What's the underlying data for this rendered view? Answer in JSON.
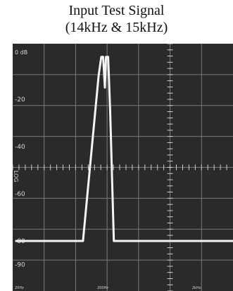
{
  "title_line1": "Input Test Signal",
  "title_line2": "(14kHz & 15kHz)",
  "colors": {
    "screen_bg": "#2a2a2a",
    "grid": "#7a7a7a",
    "trace": "#f4f4f4",
    "label": "#d8d8d8"
  },
  "chart_data": {
    "type": "line",
    "title": "Input Test Signal (14kHz & 15kHz)",
    "xlabel": "",
    "ylabel": "LOG",
    "y_scale_label": "LOG",
    "ylim": [
      -95,
      0
    ],
    "y_ticks": [
      {
        "label": "0 dB",
        "value": 0
      },
      {
        "label": "-20",
        "value": -20
      },
      {
        "label": "-40",
        "value": -40
      },
      {
        "label": "-60",
        "value": -60
      },
      {
        "label": "-80",
        "value": -80
      },
      {
        "label": "-90",
        "value": -90
      }
    ],
    "x_scale": "log",
    "xlim_hz": [
      20,
      40000
    ],
    "x_ticks": [
      {
        "label": "20Hz",
        "value": 20
      },
      {
        "label": "200Hz",
        "value": 200
      },
      {
        "label": "2kHz",
        "value": 2000
      }
    ],
    "grid": true,
    "series": [
      {
        "name": "",
        "points": [
          {
            "x": 20,
            "y": -80
          },
          {
            "x": 150,
            "y": -80
          },
          {
            "x": 240,
            "y": -10
          },
          {
            "x": 260,
            "y": -2
          },
          {
            "x": 275,
            "y": -2
          },
          {
            "x": 290,
            "y": -15
          },
          {
            "x": 300,
            "y": -2
          },
          {
            "x": 320,
            "y": -2
          },
          {
            "x": 340,
            "y": -25
          },
          {
            "x": 380,
            "y": -80
          },
          {
            "x": 40000,
            "y": -80
          }
        ]
      }
    ]
  }
}
